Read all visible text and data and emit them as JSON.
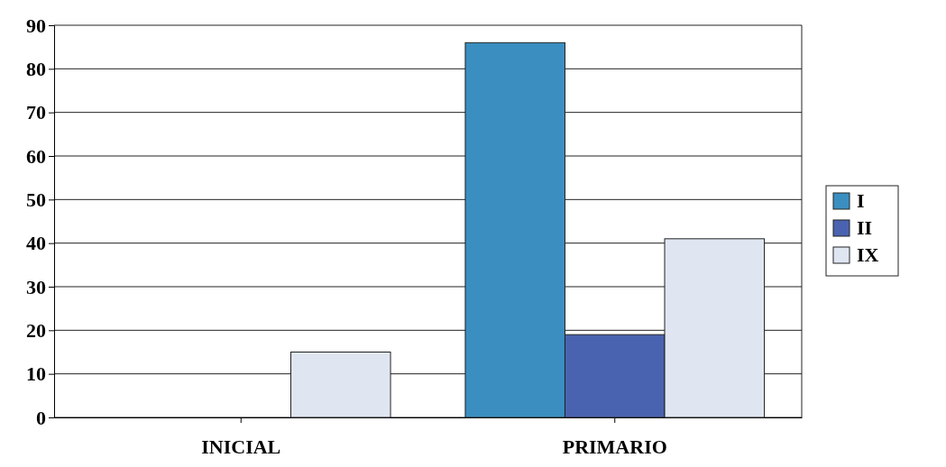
{
  "chart_data": {
    "type": "bar",
    "categories": [
      "INICIAL",
      "PRIMARIO"
    ],
    "series": [
      {
        "name": "I",
        "color": "#3a8fc0",
        "values": [
          0,
          86
        ]
      },
      {
        "name": "II",
        "color": "#4a63b0",
        "values": [
          0,
          19
        ]
      },
      {
        "name": "IX",
        "color": "#dfe6f2",
        "values": [
          15,
          41
        ]
      }
    ],
    "ylim": [
      0,
      90
    ],
    "yticks": [
      0,
      10,
      20,
      30,
      40,
      50,
      60,
      70,
      80,
      90
    ],
    "grid": "y",
    "legend": "right"
  }
}
